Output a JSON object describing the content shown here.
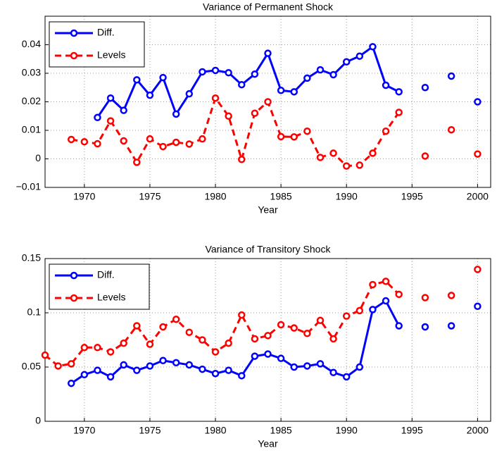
{
  "chart_data": [
    {
      "type": "line",
      "title": "Variance of Permanent Shock",
      "x_label": "Year",
      "x": [
        1967,
        1968,
        1969,
        1970,
        1971,
        1972,
        1973,
        1974,
        1975,
        1976,
        1977,
        1978,
        1979,
        1980,
        1981,
        1982,
        1983,
        1984,
        1985,
        1986,
        1987,
        1988,
        1989,
        1990,
        1991,
        1992,
        1993,
        1994,
        1995,
        1996,
        1997,
        1998,
        1999,
        2000
      ],
      "series": [
        {
          "name": "Diff.",
          "color": "#0000ff",
          "dashed": false,
          "values": [
            null,
            null,
            null,
            null,
            0.0145,
            0.0213,
            0.017,
            0.0277,
            0.0223,
            0.0285,
            0.0157,
            0.0228,
            0.0305,
            0.031,
            0.0302,
            0.026,
            0.0297,
            0.037,
            0.024,
            0.0235,
            0.0283,
            0.0312,
            0.0295,
            0.034,
            0.036,
            0.0393,
            0.0258,
            0.0235,
            null,
            0.025,
            null,
            0.029,
            null,
            0.02
          ]
        },
        {
          "name": "Levels",
          "color": "#ff0000",
          "dashed": true,
          "values": [
            null,
            null,
            0.0068,
            0.006,
            0.0053,
            0.0133,
            0.0063,
            -0.0012,
            0.007,
            0.0043,
            0.0058,
            0.0052,
            0.007,
            0.0213,
            0.015,
            -0.0002,
            0.016,
            0.02,
            0.0078,
            0.0077,
            0.0097,
            0.0005,
            0.002,
            -0.0025,
            -0.0022,
            0.002,
            0.0097,
            0.0163,
            null,
            0.001,
            null,
            0.0102,
            null,
            0.0017
          ]
        }
      ],
      "xlim": [
        1967,
        2001
      ],
      "xticks": [
        1970,
        1975,
        1980,
        1985,
        1990,
        1995,
        2000
      ],
      "ylim": [
        -0.01,
        0.05
      ],
      "yticks": [
        {
          "value": -0.01,
          "label": "−0.01"
        },
        0,
        0.01,
        0.02,
        0.03,
        0.04
      ],
      "grid": true,
      "legend": "upper left"
    },
    {
      "type": "line",
      "title": "Variance of Transitory Shock",
      "x_label": "Year",
      "x": [
        1967,
        1968,
        1969,
        1970,
        1971,
        1972,
        1973,
        1974,
        1975,
        1976,
        1977,
        1978,
        1979,
        1980,
        1981,
        1982,
        1983,
        1984,
        1985,
        1986,
        1987,
        1988,
        1989,
        1990,
        1991,
        1992,
        1993,
        1994,
        1995,
        1996,
        1997,
        1998,
        1999,
        2000
      ],
      "series": [
        {
          "name": "Diff.",
          "color": "#0000ff",
          "dashed": false,
          "values": [
            null,
            null,
            0.035,
            0.043,
            0.047,
            0.041,
            0.052,
            0.047,
            0.051,
            0.056,
            0.054,
            0.052,
            0.048,
            0.044,
            0.047,
            0.042,
            0.06,
            0.062,
            0.058,
            0.05,
            0.051,
            0.053,
            0.045,
            0.041,
            0.05,
            0.103,
            0.111,
            0.088,
            null,
            0.087,
            null,
            0.088,
            null,
            0.106
          ]
        },
        {
          "name": "Levels",
          "color": "#ff0000",
          "dashed": true,
          "values": [
            0.061,
            0.051,
            0.053,
            0.068,
            0.068,
            0.064,
            0.072,
            0.088,
            0.071,
            0.087,
            0.094,
            0.082,
            0.075,
            0.064,
            0.072,
            0.098,
            0.076,
            0.079,
            0.089,
            0.086,
            0.081,
            0.093,
            0.076,
            0.097,
            0.102,
            0.126,
            0.129,
            0.117,
            null,
            0.114,
            null,
            0.116,
            null,
            0.14
          ]
        }
      ],
      "xlim": [
        1967,
        2001
      ],
      "xticks": [
        1970,
        1975,
        1980,
        1985,
        1990,
        1995,
        2000
      ],
      "ylim": [
        0,
        0.15
      ],
      "yticks": [
        0,
        0.05,
        0.1,
        0.15
      ],
      "grid": true,
      "legend": "upper left"
    }
  ]
}
